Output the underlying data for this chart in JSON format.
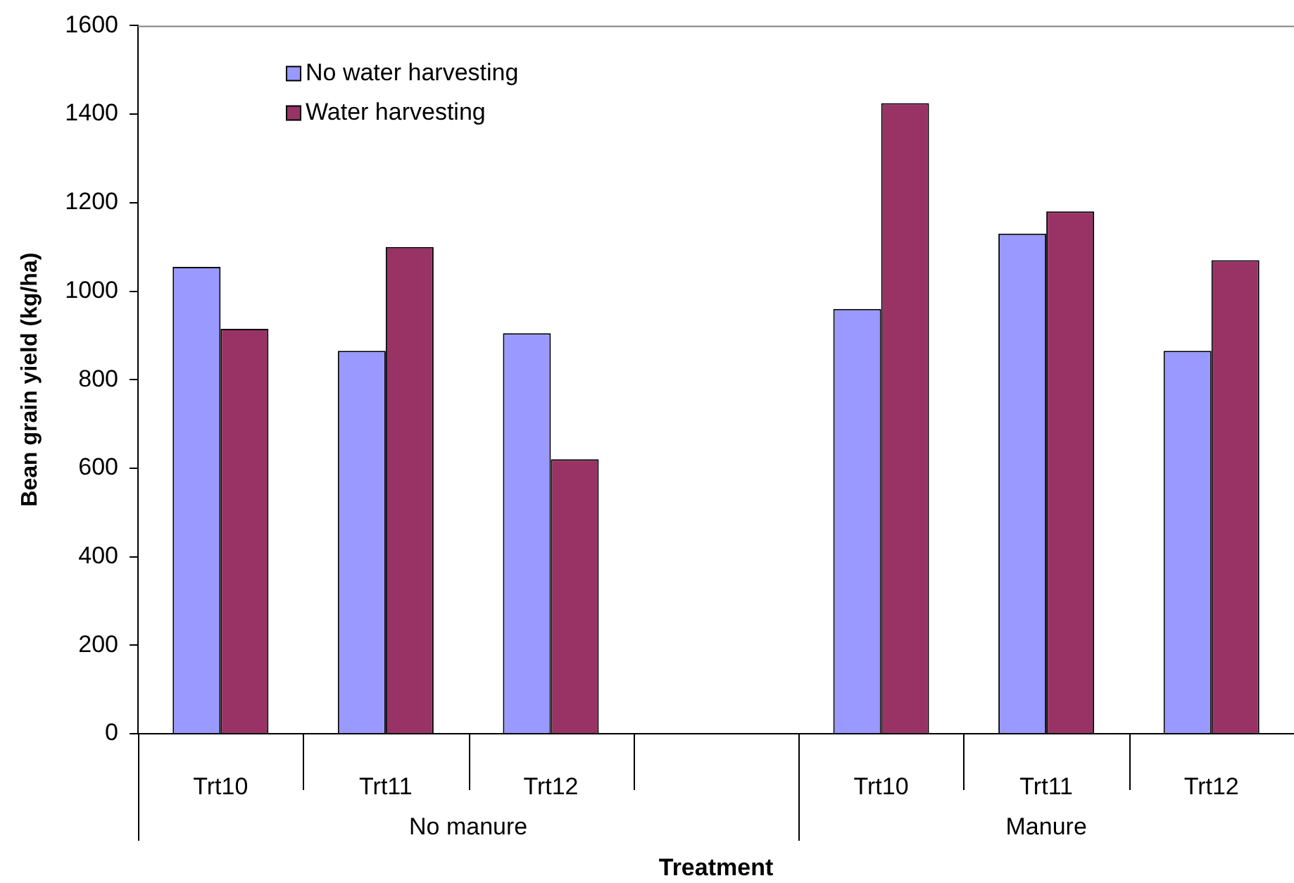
{
  "chart_data": {
    "type": "bar",
    "xlabel": "Treatment",
    "ylabel": "Bean grain yield (kg/ha)",
    "categories": [
      "Trt10",
      "Trt11",
      "Trt12",
      null,
      "Trt10",
      "Trt11",
      "Trt12"
    ],
    "series": [
      {
        "name": "No water harvesting",
        "color": "#9999ff",
        "values": [
          1055,
          865,
          905,
          null,
          960,
          1130,
          865
        ]
      },
      {
        "name": "Water harvesting",
        "color": "#993366",
        "values": [
          915,
          1100,
          620,
          null,
          1425,
          1180,
          1070
        ]
      }
    ],
    "ylim": [
      0,
      1600
    ],
    "yticks": [
      0,
      200,
      400,
      600,
      800,
      1000,
      1200,
      1400,
      1600
    ],
    "legend": "top left",
    "annotations": [
      "No manure",
      "Manure"
    ]
  }
}
